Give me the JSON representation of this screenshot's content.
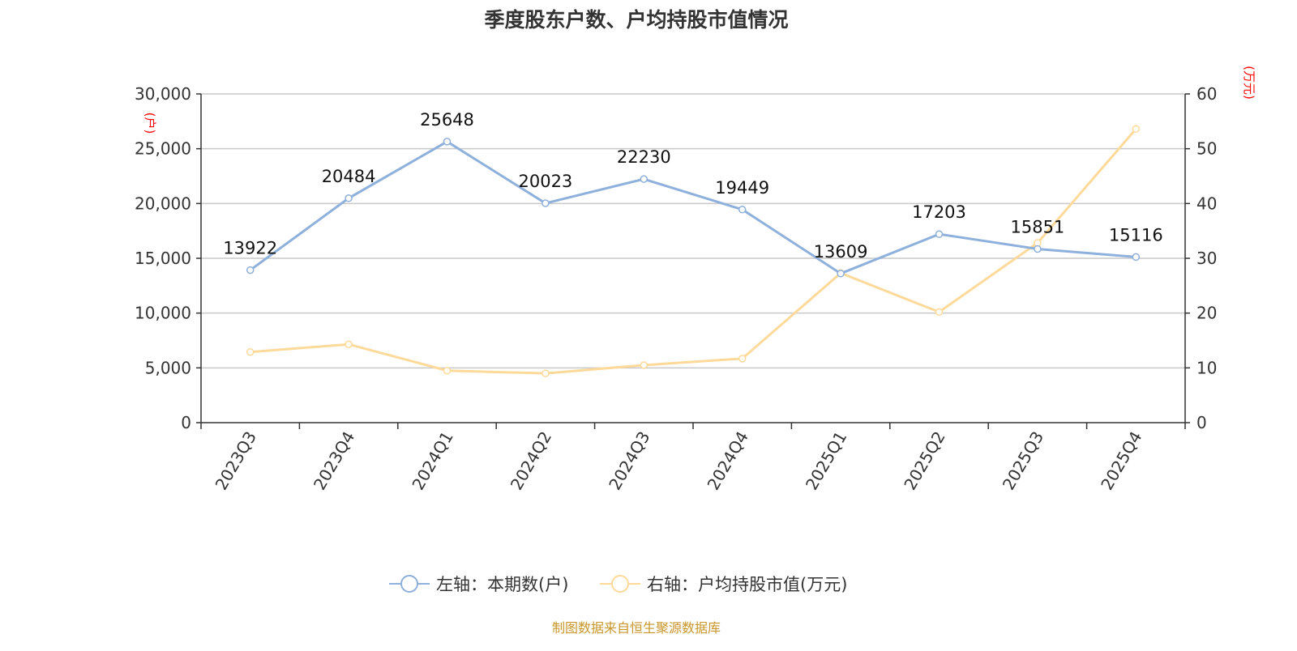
{
  "chart_data": {
    "type": "line",
    "title": "季度股东户数、户均持股市值情况",
    "categories": [
      "2023Q3",
      "2023Q4",
      "2024Q1",
      "2024Q2",
      "2024Q3",
      "2024Q4",
      "2025Q1",
      "2025Q2",
      "2025Q3",
      "2025Q4"
    ],
    "left_axis": {
      "unit": "(户)",
      "ylim": [
        0,
        30000
      ],
      "ticks": [
        "0",
        "5,000",
        "10,000",
        "15,000",
        "20,000",
        "25,000",
        "30,000"
      ]
    },
    "right_axis": {
      "unit": "(万元)",
      "ylim": [
        0,
        60
      ],
      "ticks": [
        "0",
        "10",
        "20",
        "30",
        "40",
        "50",
        "60"
      ]
    },
    "series": [
      {
        "name": "左轴：本期数(户)",
        "axis": "left",
        "color": "#8eb0dc",
        "values": [
          13922,
          20484,
          25648,
          20023,
          22230,
          19449,
          13609,
          17203,
          15851,
          15116
        ],
        "labels": [
          "13922",
          "20484",
          "25648",
          "20023",
          "22230",
          "19449",
          "13609",
          "17203",
          "15851",
          "15116"
        ]
      },
      {
        "name": "右轴：户均持股市值(万元)",
        "axis": "right",
        "color": "#fdd99a",
        "values": [
          12.9,
          14.3,
          9.5,
          9.0,
          10.5,
          11.7,
          27.3,
          20.2,
          32.8,
          53.6
        ]
      }
    ],
    "grid": true,
    "legend": "bottom"
  },
  "source": "制图数据来自恒生聚源数据库"
}
